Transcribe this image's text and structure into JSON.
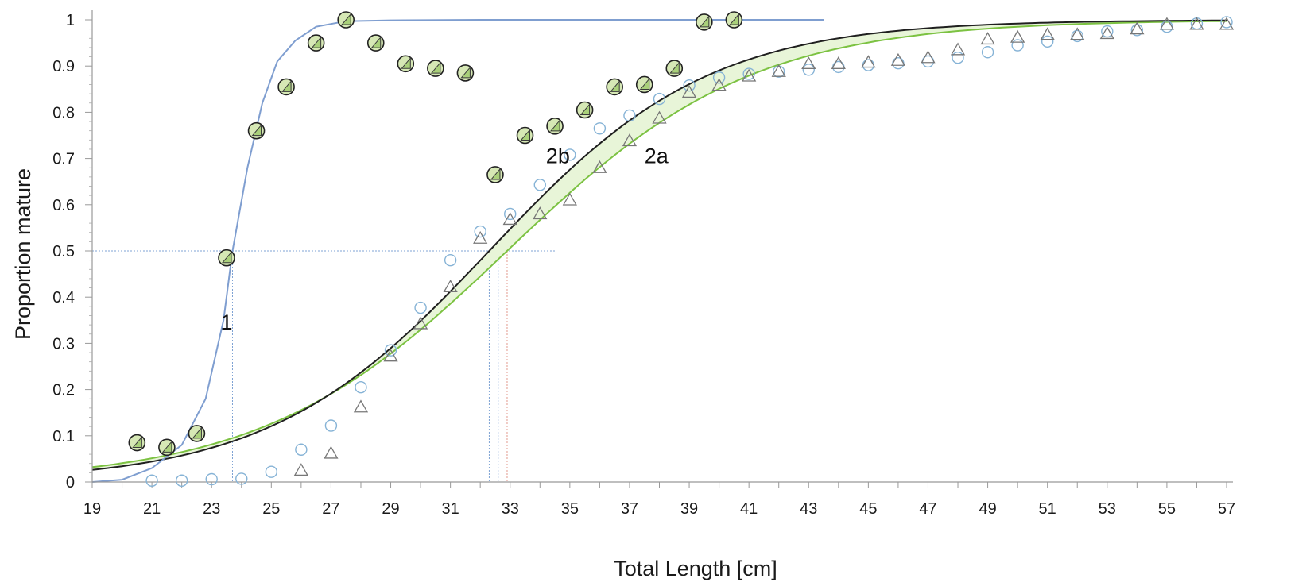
{
  "chart_data": {
    "type": "scatter",
    "title": "",
    "xlabel": "Total Length [cm]",
    "ylabel": "Proportion mature",
    "xlim": [
      19,
      57
    ],
    "ylim": [
      0,
      1
    ],
    "x_ticks": [
      "19",
      "21",
      "23",
      "25",
      "27",
      "29",
      "31",
      "33",
      "35",
      "37",
      "39",
      "41",
      "43",
      "45",
      "47",
      "49",
      "51",
      "53",
      "55",
      "57"
    ],
    "y_ticks": [
      "0",
      "0.1",
      "0.2",
      "0.3",
      "0.4",
      "0.5",
      "0.6",
      "0.7",
      "0.8",
      "0.9",
      "1"
    ],
    "grid": false,
    "colors": {
      "curve1": "#7f9ed0",
      "curve2b": "#1f1f1f",
      "curve2a": "#7cc242",
      "band": "#e8f5d8",
      "circle_open": "#86b3d6",
      "triangle_open": "#777777",
      "marker_fill": "#d6e8b5",
      "marker_edge": "#222222",
      "ref_red": "#e29a8e",
      "ref_blue": "#7fa3d4"
    },
    "annotations": [
      {
        "text": "1",
        "x": 23.3,
        "y": 0.33
      },
      {
        "text": "2b",
        "x": 34.2,
        "y": 0.69
      },
      {
        "text": "2a",
        "x": 37.5,
        "y": 0.69
      }
    ],
    "reference_lines": {
      "y50": 0.5,
      "x50": [
        23.7,
        32.3,
        32.6,
        32.9
      ]
    },
    "series": [
      {
        "kind": "curve",
        "points": [
          [
            19,
            0
          ],
          [
            20,
            0.005
          ],
          [
            21,
            0.03
          ],
          [
            22,
            0.08
          ],
          [
            22.8,
            0.18
          ],
          [
            23.4,
            0.35
          ],
          [
            23.7,
            0.5
          ],
          [
            24.2,
            0.68
          ],
          [
            24.7,
            0.82
          ],
          [
            25.2,
            0.91
          ],
          [
            25.8,
            0.955
          ],
          [
            26.5,
            0.985
          ],
          [
            27.5,
            0.997
          ],
          [
            29,
            0.999
          ],
          [
            32,
            1
          ],
          [
            43.5,
            1
          ]
        ]
      },
      {
        "kind": "curve",
        "logistic": {
          "L50": 32.3,
          "slope": 0.272
        }
      },
      {
        "kind": "curve",
        "logistic": {
          "L50": 32.9,
          "slope": 0.245
        }
      },
      {
        "kind": "markers-filled",
        "points": [
          [
            20.5,
            0.085
          ],
          [
            21.5,
            0.075
          ],
          [
            22.5,
            0.105
          ],
          [
            23.5,
            0.485
          ],
          [
            24.5,
            0.76
          ],
          [
            25.5,
            0.855
          ],
          [
            26.5,
            0.95
          ],
          [
            27.5,
            1.0
          ],
          [
            28.5,
            0.95
          ],
          [
            29.5,
            0.905
          ],
          [
            30.5,
            0.895
          ],
          [
            31.5,
            0.885
          ],
          [
            32.5,
            0.665
          ],
          [
            33.5,
            0.75
          ],
          [
            34.5,
            0.77
          ],
          [
            35.5,
            0.805
          ],
          [
            36.5,
            0.855
          ],
          [
            37.5,
            0.86
          ],
          [
            38.5,
            0.895
          ],
          [
            39.5,
            0.995
          ],
          [
            40.5,
            1.0
          ]
        ]
      },
      {
        "kind": "open-circle",
        "points": [
          [
            21,
            0.003
          ],
          [
            22,
            0.003
          ],
          [
            23,
            0.006
          ],
          [
            24,
            0.007
          ],
          [
            25,
            0.022
          ],
          [
            26,
            0.07
          ],
          [
            27,
            0.122
          ],
          [
            28,
            0.205
          ],
          [
            29,
            0.285
          ],
          [
            30,
            0.377
          ],
          [
            31,
            0.48
          ],
          [
            32,
            0.542
          ],
          [
            33,
            0.58
          ],
          [
            34,
            0.643
          ],
          [
            35,
            0.708
          ],
          [
            36,
            0.765
          ],
          [
            37,
            0.793
          ],
          [
            38,
            0.829
          ],
          [
            39,
            0.858
          ],
          [
            40,
            0.875
          ],
          [
            41,
            0.883
          ],
          [
            42,
            0.888
          ],
          [
            43,
            0.892
          ],
          [
            44,
            0.898
          ],
          [
            45,
            0.902
          ],
          [
            46,
            0.906
          ],
          [
            47,
            0.91
          ],
          [
            48,
            0.918
          ],
          [
            49,
            0.93
          ],
          [
            50,
            0.945
          ],
          [
            51,
            0.953
          ],
          [
            52,
            0.965
          ],
          [
            53,
            0.975
          ],
          [
            54,
            0.978
          ],
          [
            55,
            0.985
          ],
          [
            56,
            0.992
          ],
          [
            57,
            0.995
          ]
        ]
      },
      {
        "kind": "open-triangle",
        "points": [
          [
            26,
            0.025
          ],
          [
            27,
            0.062
          ],
          [
            28,
            0.162
          ],
          [
            29,
            0.272
          ],
          [
            30,
            0.342
          ],
          [
            31,
            0.422
          ],
          [
            32,
            0.527
          ],
          [
            33,
            0.568
          ],
          [
            34,
            0.58
          ],
          [
            35,
            0.61
          ],
          [
            36,
            0.68
          ],
          [
            37,
            0.738
          ],
          [
            38,
            0.787
          ],
          [
            39,
            0.843
          ],
          [
            40,
            0.858
          ],
          [
            41,
            0.878
          ],
          [
            42,
            0.888
          ],
          [
            43,
            0.905
          ],
          [
            44,
            0.905
          ],
          [
            45,
            0.908
          ],
          [
            46,
            0.912
          ],
          [
            47,
            0.918
          ],
          [
            48,
            0.935
          ],
          [
            49,
            0.958
          ],
          [
            50,
            0.962
          ],
          [
            51,
            0.968
          ],
          [
            52,
            0.968
          ],
          [
            53,
            0.97
          ],
          [
            54,
            0.98
          ],
          [
            55,
            0.99
          ],
          [
            56,
            0.99
          ],
          [
            57,
            0.99
          ]
        ]
      }
    ]
  }
}
